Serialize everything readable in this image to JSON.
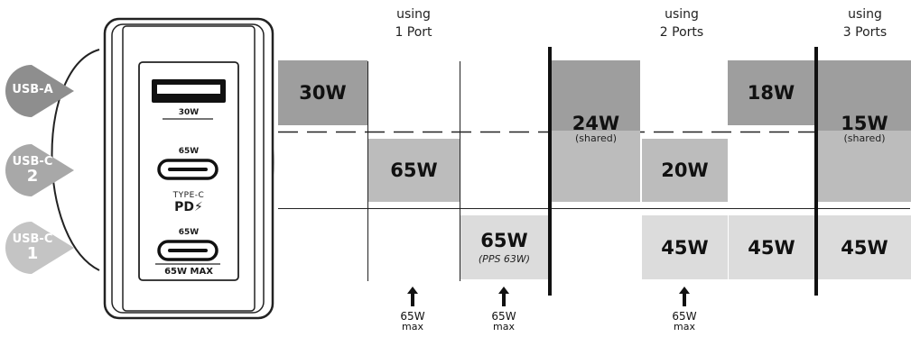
{
  "headers": {
    "one": [
      "using",
      "1 Port"
    ],
    "two": [
      "using",
      "2 Ports"
    ],
    "three": [
      "using",
      "3 Ports"
    ]
  },
  "badges": {
    "usb_a": "USB-A",
    "usb_c2_top": "USB-C",
    "usb_c2_num": "2",
    "usb_c1_top": "USB-C",
    "usb_c1_num": "1"
  },
  "device": {
    "port_a_label": "30W",
    "port_c2_label": "65W",
    "type_c": "TYPE-C",
    "pd": "PD",
    "port_c1_label": "65W",
    "max_label": "65W MAX"
  },
  "cells": {
    "a_1port": "30W",
    "c2_1port": "65W",
    "c1_1port": "65W",
    "c1_1port_sub": "(PPS 63W)",
    "shared_24": "24W",
    "shared_24_sub": "(shared)",
    "c2_20": "20W",
    "a_18": "18W",
    "c1_45a": "45W",
    "c1_45b": "45W",
    "shared_15": "15W",
    "shared_15_sub": "(shared)",
    "c1_45c": "45W"
  },
  "max_notes": [
    {
      "value": "65W",
      "unit": "max"
    },
    {
      "value": "65W",
      "unit": "max"
    },
    {
      "value": "65W",
      "unit": "max"
    }
  ],
  "colors": {
    "dark": "#9e9e9e",
    "mid": "#bcbcbc",
    "light": "#dcdcdc",
    "badge_dark": "#8e8e8e",
    "badge_mid": "#a8a8a8",
    "badge_light": "#c4c4c4"
  }
}
